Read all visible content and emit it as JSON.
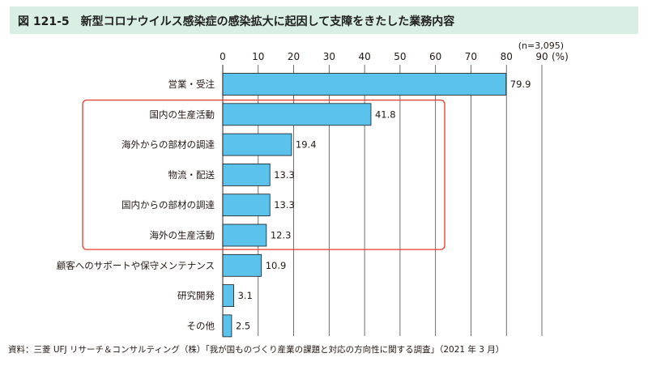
{
  "figure": {
    "title": "図 121-5　新型コロナウイルス感染症の感染拡大に起因して支障をきたした業務内容",
    "note": "(n=3,095)",
    "source": "資料：三菱 UFJ リサーチ＆コンサルティング（株）「我が国ものづくり産業の課題と対応の方向性に関する調査」（2021 年 3 月）"
  },
  "chart_data": {
    "type": "bar",
    "orientation": "horizontal",
    "categories": [
      "営業・受注",
      "国内の生産活動",
      "海外からの部材の調達",
      "物流・配送",
      "国内からの部材の調達",
      "海外の生産活動",
      "顧客へのサポートや保守メンテナンス",
      "研究開発",
      "その他"
    ],
    "values": [
      79.9,
      41.8,
      19.4,
      13.3,
      13.3,
      12.3,
      10.9,
      3.1,
      2.5
    ],
    "value_labels": [
      "79.9",
      "41.8",
      "19.4",
      "13.3",
      "13.3",
      "12.3",
      "10.9",
      "3.1",
      "2.5"
    ],
    "xlim": [
      0,
      90
    ],
    "xticks": [
      "0",
      "10",
      "20",
      "30",
      "40",
      "50",
      "60",
      "70",
      "80",
      "90"
    ],
    "unit": "(%)",
    "grid": true,
    "highlight_categories": [
      1,
      2,
      3,
      4,
      5
    ],
    "colors": {
      "bar": "#5bc2ec",
      "bar_stroke": "#1a1a1a",
      "grid": "#4d4d4d",
      "highlight": "#e8382e",
      "title_bg": "#d9efe4"
    }
  }
}
